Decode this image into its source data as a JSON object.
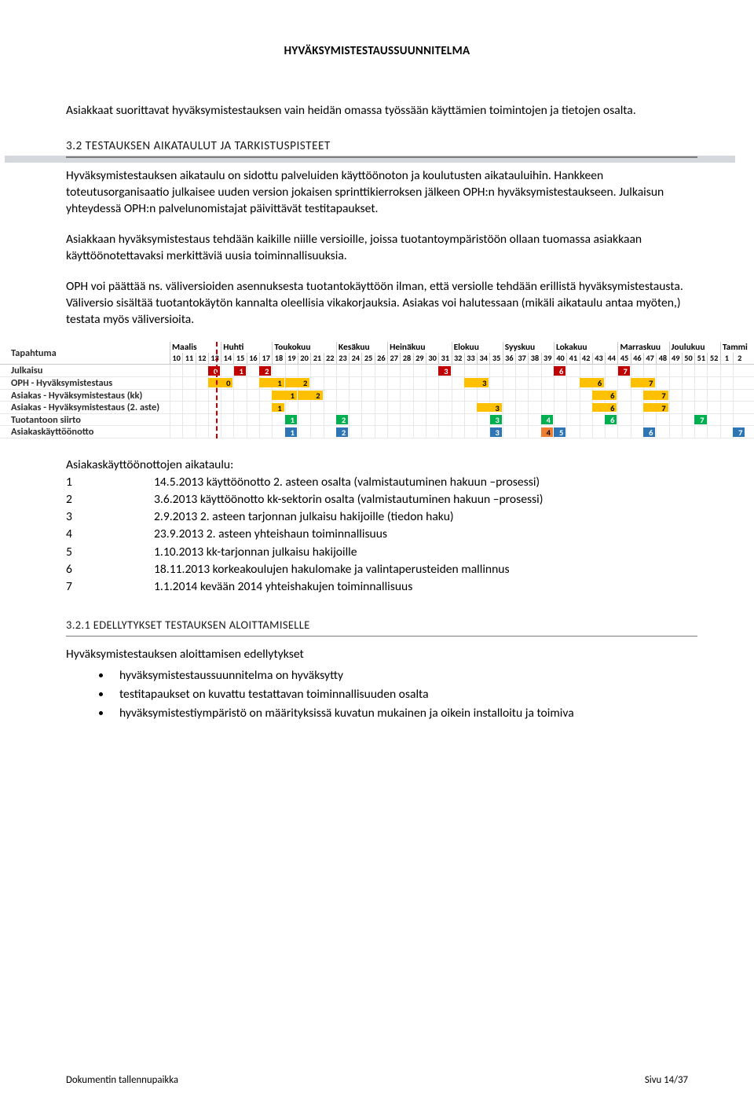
{
  "header": {
    "title": "HYVÄKSYMISTESTAUSSUUNNITELMA"
  },
  "intro_para": "Asiakkaat suorittavat hyväksymistestauksen vain heidän omassa työssään käyttämien toimintojen ja tietojen osalta.",
  "section_3_2": {
    "title": "3.2 TESTAUKSEN AIKATAULUT JA TARKISTUSPISTEET",
    "para1": "Hyväksymistestauksen aikataulu on sidottu palveluiden käyttöönoton ja koulutusten aikatauluihin. Hankkeen toteutusorganisaatio julkaisee uuden version jokaisen sprinttikierroksen jälkeen OPH:n hyväksymistestaukseen. Julkaisun yhteydessä OPH:n palvelunomistajat päivittävät testitapaukset.",
    "para2": "Asiakkaan hyväksymistestaus tehdään kaikille niille versioille, joissa tuotantoympäristöön ollaan tuomassa asiakkaan käyttöönotettavaksi merkittäviä uusia toiminnallisuuksia.",
    "para3": "OPH voi päättää ns. väliversioiden asennuksesta tuotantokäyttöön ilman, että versiolle tehdään erillistä hyväksymistestausta. Väliversio sisältää tuotantokäytön kannalta oleellisia vikakorjauksia. Asiakas voi halutessaan (mikäli aikataulu antaa myöten,) testata myös väliversioita."
  },
  "gantt": {
    "event_label": "Tapahtuma",
    "cell_w": 16.3,
    "today_week_index": 3.6,
    "months": [
      {
        "label": "Maalis",
        "weeks": 4
      },
      {
        "label": "Huhti",
        "weeks": 4
      },
      {
        "label": "Toukokuu",
        "weeks": 5
      },
      {
        "label": "Kesäkuu",
        "weeks": 4
      },
      {
        "label": "Heinäkuu",
        "weeks": 5
      },
      {
        "label": "Elokuu",
        "weeks": 4
      },
      {
        "label": "Syyskuu",
        "weeks": 4
      },
      {
        "label": "Lokakuu",
        "weeks": 5
      },
      {
        "label": "Marraskuu",
        "weeks": 4
      },
      {
        "label": "Joulukuu",
        "weeks": 4
      },
      {
        "label": "Tammi",
        "weeks": 2
      }
    ],
    "weeks": [
      "10",
      "11",
      "12",
      "13",
      "14",
      "15",
      "16",
      "17",
      "18",
      "19",
      "20",
      "21",
      "22",
      "23",
      "24",
      "25",
      "26",
      "27",
      "28",
      "29",
      "30",
      "31",
      "32",
      "33",
      "34",
      "35",
      "36",
      "37",
      "38",
      "39",
      "40",
      "41",
      "42",
      "43",
      "44",
      "45",
      "46",
      "47",
      "48",
      "49",
      "50",
      "51",
      "52",
      "1",
      "2"
    ],
    "colors": {
      "red": "#c00000",
      "yellow": "#ffc000",
      "blue": "#2e75b6",
      "green": "#00b050",
      "orange": "#ed7d31",
      "grid": "#c9c9c9"
    },
    "rows": [
      {
        "label": "Julkaisu",
        "blocks": [
          {
            "start": 3,
            "span": 1,
            "label": "0",
            "color": "red"
          },
          {
            "start": 5,
            "span": 1,
            "label": "1",
            "color": "red"
          },
          {
            "start": 7,
            "span": 1,
            "label": "2",
            "color": "red"
          },
          {
            "start": 21,
            "span": 1,
            "label": "3",
            "color": "red"
          },
          {
            "start": 30,
            "span": 1,
            "label": "6",
            "color": "red"
          },
          {
            "start": 35,
            "span": 1,
            "label": "7",
            "color": "red"
          }
        ]
      },
      {
        "label": "OPH - Hyväksymistestaus",
        "blocks": [
          {
            "start": 3,
            "span": 2,
            "label": "0",
            "color": "yellow"
          },
          {
            "start": 7,
            "span": 2,
            "label": "1",
            "color": "yellow"
          },
          {
            "start": 9,
            "span": 2,
            "label": "2",
            "color": "yellow"
          },
          {
            "start": 23,
            "span": 2,
            "label": "3",
            "color": "yellow"
          },
          {
            "start": 32,
            "span": 2,
            "label": "6",
            "color": "yellow"
          },
          {
            "start": 36,
            "span": 2,
            "label": "7",
            "color": "yellow"
          }
        ]
      },
      {
        "label": "Asiakas - Hyväksymistestaus (kk)",
        "blocks": [
          {
            "start": 8,
            "span": 2,
            "label": "1",
            "color": "yellow"
          },
          {
            "start": 10,
            "span": 2,
            "label": "2",
            "color": "yellow"
          },
          {
            "start": 33,
            "span": 2,
            "label": "6",
            "color": "yellow"
          },
          {
            "start": 37,
            "span": 2,
            "label": "7",
            "color": "yellow"
          }
        ]
      },
      {
        "label": "Asiakas - Hyväksymistestaus (2. aste)",
        "blocks": [
          {
            "start": 8,
            "span": 1,
            "label": "1",
            "color": "yellow"
          },
          {
            "start": 24,
            "span": 2,
            "label": "3",
            "color": "yellow"
          },
          {
            "start": 33,
            "span": 2,
            "label": "6",
            "color": "yellow"
          },
          {
            "start": 37,
            "span": 2,
            "label": "7",
            "color": "yellow"
          }
        ]
      },
      {
        "label": "Tuotantoon siirto",
        "blocks": [
          {
            "start": 9,
            "span": 1,
            "label": "1",
            "color": "green"
          },
          {
            "start": 13,
            "span": 1,
            "label": "2",
            "color": "green"
          },
          {
            "start": 25,
            "span": 1,
            "label": "3",
            "color": "green"
          },
          {
            "start": 29,
            "span": 1,
            "label": "4",
            "color": "green"
          },
          {
            "start": 34,
            "span": 1,
            "label": "6",
            "color": "green"
          },
          {
            "start": 41,
            "span": 1,
            "label": "7",
            "color": "green"
          }
        ]
      },
      {
        "label": "Asiakaskäyttöönotto",
        "blocks": [
          {
            "start": 9,
            "span": 1,
            "label": "1",
            "color": "blue"
          },
          {
            "start": 13,
            "span": 1,
            "label": "2",
            "color": "blue"
          },
          {
            "start": 25,
            "span": 1,
            "label": "3",
            "color": "blue"
          },
          {
            "start": 29,
            "span": 1,
            "label": "4",
            "color": "orange"
          },
          {
            "start": 30,
            "span": 1,
            "label": "5",
            "color": "blue"
          },
          {
            "start": 37,
            "span": 1,
            "label": "6",
            "color": "blue"
          },
          {
            "start": 44,
            "span": 1,
            "label": "7",
            "color": "blue"
          }
        ]
      }
    ]
  },
  "schedule": {
    "title": "Asiakaskäyttöönottojen aikataulu:",
    "rows": [
      {
        "num": "1",
        "text": "14.5.2013 käyttöönotto 2. asteen osalta (valmistautuminen hakuun –prosessi)"
      },
      {
        "num": "2",
        "text": "3.6.2013 käyttöönotto kk-sektorin osalta (valmistautuminen hakuun –prosessi)"
      },
      {
        "num": "3",
        "text": "2.9.2013 2. asteen tarjonnan julkaisu hakijoille (tiedon haku)"
      },
      {
        "num": "4",
        "text": "23.9.2013 2. asteen yhteishaun toiminnallisuus"
      },
      {
        "num": "5",
        "text": "1.10.2013 kk-tarjonnan julkaisu hakijoille"
      },
      {
        "num": "6",
        "text": "18.11.2013 korkeakoulujen hakulomake ja valintaperusteiden mallinnus"
      },
      {
        "num": "7",
        "text": "1.1.2014 kevään 2014 yhteishakujen toiminnallisuus"
      }
    ]
  },
  "subsection_3_2_1": {
    "title": "3.2.1 EDELLYTYKSET TESTAUKSEN ALOITTAMISELLE",
    "intro": "Hyväksymistestauksen aloittamisen edellytykset",
    "bullets": [
      "hyväksymistestaussuunnitelma on hyväksytty",
      "testitapaukset on kuvattu testattavan toiminnallisuuden osalta",
      "hyväksymistestiympäristö on määrityksissä kuvatun mukainen ja oikein installoitu ja toimiva"
    ]
  },
  "footer": {
    "left": "Dokumentin tallennupaikka",
    "right": "Sivu 14/37"
  }
}
